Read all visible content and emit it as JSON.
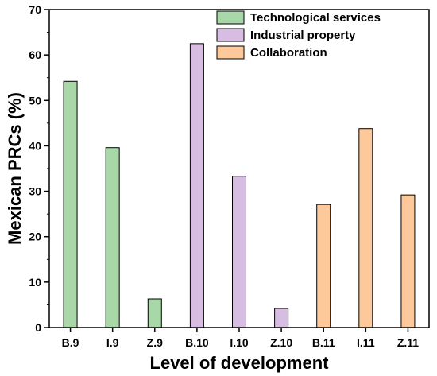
{
  "chart_data": {
    "type": "bar",
    "xlabel": "Level of development",
    "ylabel": "Mexican PRCs (%)",
    "ylim": [
      0,
      70
    ],
    "yticks": [
      0,
      10,
      20,
      30,
      40,
      50,
      60,
      70
    ],
    "grid": false,
    "legend_position": "top-right",
    "categories": [
      "B.9",
      "I.9",
      "Z.9",
      "B.10",
      "I.10",
      "Z.10",
      "B.11",
      "I.11",
      "Z.11"
    ],
    "series": [
      {
        "name": "Technological services",
        "color": "#a8d8a8",
        "values": [
          54.2,
          39.6,
          6.3,
          null,
          null,
          null,
          null,
          null,
          null
        ]
      },
      {
        "name": "Industrial property",
        "color": "#d7bde2",
        "values": [
          null,
          null,
          null,
          62.5,
          33.3,
          4.2,
          null,
          null,
          null
        ]
      },
      {
        "name": "Collaboration",
        "color": "#fdc99a",
        "values": [
          null,
          null,
          null,
          null,
          null,
          null,
          27.1,
          43.8,
          29.2
        ]
      }
    ]
  }
}
